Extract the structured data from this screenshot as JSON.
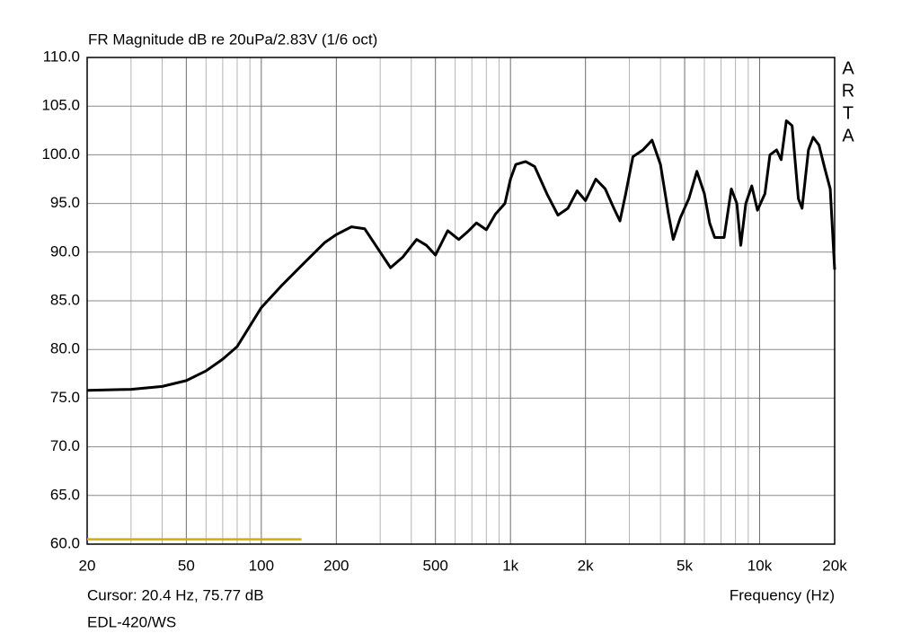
{
  "chart_data": {
    "type": "line",
    "title": "FR Magnitude dB re 20uPa/2.83V (1/6 oct)",
    "watermark": [
      "A",
      "R",
      "T",
      "A"
    ],
    "cursor_text": "Cursor: 20.4 Hz, 75.77 dB",
    "x_label": "Frequency (Hz)",
    "device": "EDL-420/WS",
    "log_x": true,
    "grid": true,
    "xlim": [
      20,
      20000
    ],
    "ylim": [
      60,
      110
    ],
    "xticks": [
      20,
      50,
      100,
      200,
      500,
      {
        "value": 1000,
        "label": "1k"
      },
      {
        "value": 2000,
        "label": "2k"
      },
      {
        "value": 5000,
        "label": "5k"
      },
      {
        "value": 10000,
        "label": "10k"
      },
      {
        "value": 20000,
        "label": "20k"
      }
    ],
    "xminorticks": [
      30,
      40,
      60,
      70,
      80,
      90,
      300,
      400,
      600,
      700,
      800,
      900,
      3000,
      4000,
      6000,
      7000,
      8000,
      9000
    ],
    "yticks": [
      {
        "value": 60,
        "label": "60.0"
      },
      {
        "value": 65,
        "label": "65.0"
      },
      {
        "value": 70,
        "label": "70.0"
      },
      {
        "value": 75,
        "label": "75.0"
      },
      {
        "value": 80,
        "label": "80.0"
      },
      {
        "value": 85,
        "label": "85.0"
      },
      {
        "value": 90,
        "label": "90.0"
      },
      {
        "value": 95,
        "label": "95.0"
      },
      {
        "value": 100,
        "label": "100.0"
      },
      {
        "value": 105,
        "label": "105.0"
      },
      {
        "value": 110,
        "label": "110.0"
      }
    ],
    "series": [
      {
        "color": "#000000",
        "x": [
          20,
          30,
          40,
          50,
          60,
          70,
          80,
          100,
          120,
          150,
          180,
          200,
          230,
          260,
          300,
          330,
          370,
          420,
          460,
          500,
          560,
          620,
          680,
          730,
          800,
          870,
          950,
          1000,
          1050,
          1150,
          1250,
          1400,
          1550,
          1700,
          1850,
          2000,
          2200,
          2400,
          2600,
          2750,
          2900,
          3100,
          3400,
          3700,
          4000,
          4300,
          4500,
          4800,
          5200,
          5600,
          6000,
          6300,
          6600,
          7200,
          7700,
          8100,
          8400,
          8800,
          9300,
          9800,
          10500,
          11000,
          11700,
          12200,
          12800,
          13500,
          14300,
          14800,
          15700,
          16400,
          17300,
          18300,
          19200,
          20000
        ],
        "values": [
          75.8,
          75.9,
          76.2,
          76.8,
          77.8,
          79.0,
          80.3,
          84.3,
          86.5,
          89.0,
          91.0,
          91.8,
          92.6,
          92.4,
          90.0,
          88.4,
          89.5,
          91.3,
          90.7,
          89.7,
          92.2,
          91.3,
          92.2,
          93.0,
          92.3,
          93.9,
          95.0,
          97.5,
          99.0,
          99.3,
          98.8,
          96.0,
          93.8,
          94.5,
          96.3,
          95.3,
          97.5,
          96.5,
          94.5,
          93.2,
          96.0,
          99.8,
          100.5,
          101.5,
          99.0,
          94.0,
          91.3,
          93.5,
          95.5,
          98.3,
          96.0,
          93.0,
          91.5,
          91.5,
          96.5,
          95.0,
          90.7,
          95.0,
          96.8,
          94.3,
          96.0,
          100.0,
          100.5,
          99.5,
          103.5,
          103.0,
          95.5,
          94.5,
          100.5,
          101.8,
          101.0,
          98.5,
          96.5,
          88.2
        ]
      },
      {
        "color": "#c8b400",
        "x": [
          20,
          145
        ],
        "values": [
          60.5,
          60.5
        ]
      }
    ]
  }
}
